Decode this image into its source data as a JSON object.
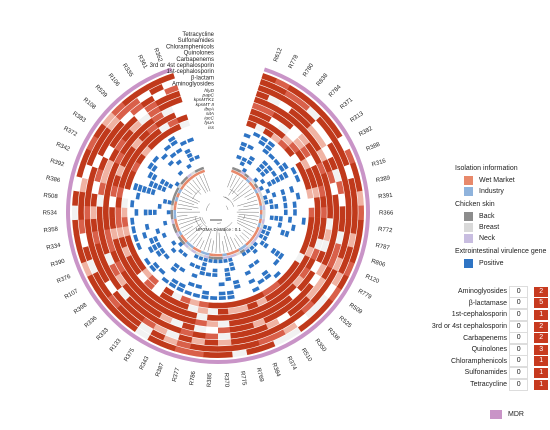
{
  "isolates": [
    "R612",
    "R778",
    "R780",
    "R838",
    "R784",
    "R371",
    "R313",
    "R382",
    "R388",
    "R316",
    "R389",
    "R391",
    "R366",
    "R772",
    "R787",
    "R806",
    "R120",
    "R779",
    "R509",
    "R525",
    "R338",
    "R350",
    "R510",
    "R374",
    "R384",
    "R769",
    "R775",
    "R370",
    "R385",
    "R786",
    "R377",
    "R387",
    "R343",
    "R375",
    "R133",
    "R333",
    "R336",
    "R398",
    "R107",
    "R376",
    "R390",
    "R334",
    "R358",
    "R534",
    "R508",
    "R386",
    "R392",
    "R342",
    "R372",
    "R383",
    "R108",
    "R539",
    "R106",
    "R335",
    "R361",
    "R362"
  ],
  "resistance_genes": [
    "Tetracycline",
    "Sulfonamides",
    "Chloramphenicols",
    "Quinolones",
    "Carbapenems",
    "3rd or 4st cephalosporin",
    "1st-cephalosporin",
    "β-lactam",
    "Aminoglyosides"
  ],
  "virulence_genes": [
    "hlyD",
    "papC",
    "kpsMTK1",
    "kpsMT II",
    "ibeA",
    "sitA",
    "iucC",
    "fyuA",
    "iss"
  ],
  "scale_label": "UPGMA Distance : 0.1",
  "legend": {
    "isolation_title": "Isolation information",
    "isolation_items": [
      {
        "label": "Wet Market",
        "color": "#e8896b"
      },
      {
        "label": "Industry",
        "color": "#8fb3dc"
      }
    ],
    "skin_title": "Chicken skin",
    "skin_items": [
      {
        "label": "Back",
        "color": "#8c8c8c"
      },
      {
        "label": "Breast",
        "color": "#d9d9d9"
      },
      {
        "label": "Neck",
        "color": "#c8bde0"
      }
    ],
    "virulence_title": "Extrointestinal virulence gene",
    "virulence_items": [
      {
        "label": "Positive",
        "color": "#2e74c4"
      }
    ]
  },
  "counts_table": [
    {
      "label": "Aminoglyosides",
      "zero": "0",
      "val": "2"
    },
    {
      "label": "β-lactamase",
      "zero": "0",
      "val": "5"
    },
    {
      "label": "1st-cephalosporin",
      "zero": "0",
      "val": "1"
    },
    {
      "label": "3rd or 4st cephalosporin",
      "zero": "0",
      "val": "2"
    },
    {
      "label": "Carbapenems",
      "zero": "0",
      "val": "2"
    },
    {
      "label": "Quinolones",
      "zero": "0",
      "val": "3"
    },
    {
      "label": "Chloramphenicols",
      "zero": "0",
      "val": "1"
    },
    {
      "label": "Sulfonamides",
      "zero": "0",
      "val": "1"
    },
    {
      "label": "Tetracycline",
      "zero": "0",
      "val": "1"
    }
  ],
  "mdr_label": "MDR",
  "colors": {
    "mdr": "#c994c7",
    "red_dark": "#c0391b",
    "red_mid": "#d9604a",
    "pink": "#f0b3a3",
    "blue": "#2e74c4"
  }
}
